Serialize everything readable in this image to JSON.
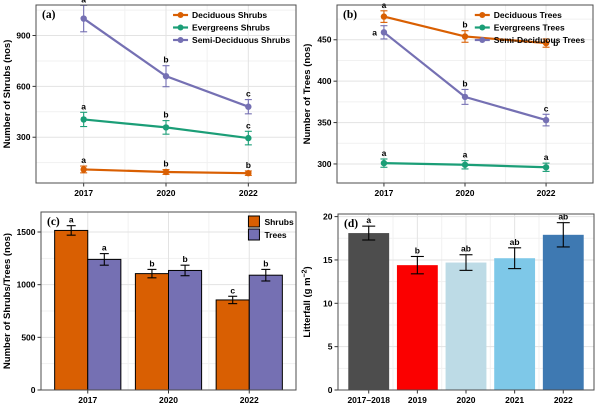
{
  "figure": {
    "background": "#ffffff",
    "palette": {
      "orange": "#D95F02",
      "green": "#1B9E77",
      "purple": "#7570B3",
      "grid_major": "#E3E3E3",
      "grid_minor": "#F1F1F1",
      "panel_border": "#4D4D4D",
      "text": "#000000"
    }
  },
  "chart_data": [
    {
      "id": "a",
      "panel_label": "(a)",
      "type": "line",
      "title": "",
      "xlabel": "",
      "ylabel": "Number of Shrubs (nos)",
      "ylim": [
        30,
        1080
      ],
      "yticks": [
        300,
        600,
        900
      ],
      "grid": true,
      "legend_position": "top-right-inside",
      "categories": [
        "2017",
        "2020",
        "2022"
      ],
      "series": [
        {
          "name": "Deciduous Shrubs",
          "color": "#D95F02",
          "values": [
            110,
            95,
            88
          ],
          "errors": [
            20,
            14,
            13
          ],
          "letters": [
            "a",
            "b",
            "b"
          ]
        },
        {
          "name": "Evergreens Shrubs",
          "color": "#1B9E77",
          "values": [
            405,
            358,
            295
          ],
          "errors": [
            42,
            40,
            40
          ],
          "letters": [
            "a",
            "b",
            "c"
          ]
        },
        {
          "name": "Semi-Deciduous Shrubs",
          "color": "#7570B3",
          "values": [
            1000,
            660,
            480
          ],
          "errors": [
            78,
            62,
            42
          ],
          "letters": [
            "a",
            "b",
            "c"
          ]
        }
      ]
    },
    {
      "id": "b",
      "panel_label": "(b)",
      "type": "line",
      "title": "",
      "xlabel": "",
      "ylabel": "Number of Trees (nos)",
      "ylim": [
        277,
        492
      ],
      "yticks": [
        300,
        350,
        400,
        450
      ],
      "grid": true,
      "legend_position": "top-right-inside",
      "categories": [
        "2017",
        "2020",
        "2022"
      ],
      "series": [
        {
          "name": "Deciduous Trees",
          "color": "#D95F02",
          "values": [
            478,
            454,
            446
          ],
          "errors": [
            7,
            7,
            5
          ],
          "letters": [
            "a",
            "b",
            "b"
          ],
          "letter_sides": [
            "top",
            "top",
            "right"
          ]
        },
        {
          "name": "Evergreens Trees",
          "color": "#1B9E77",
          "values": [
            301,
            299,
            296
          ],
          "errors": [
            5,
            5,
            5
          ],
          "letters": [
            "a",
            "a",
            "a"
          ]
        },
        {
          "name": "Semi-Deciduous Trees",
          "color": "#7570B3",
          "values": [
            459,
            381,
            353
          ],
          "errors": [
            8,
            9,
            7
          ],
          "letters": [
            "a",
            "b",
            "c"
          ],
          "letter_sides": [
            "left",
            "top",
            "top"
          ]
        }
      ]
    },
    {
      "id": "c",
      "panel_label": "(c)",
      "type": "grouped_bar",
      "title": "",
      "xlabel": "",
      "ylabel": "Number of Shrubs/Trees (nos)",
      "ylim": [
        0,
        1690
      ],
      "yticks": [
        0,
        500,
        1000,
        1500
      ],
      "grid": true,
      "legend_position": "top-right-inside",
      "bar_stroke": "#000000",
      "categories": [
        "2017",
        "2020",
        "2022"
      ],
      "series": [
        {
          "name": "Shrubs",
          "color": "#D95F02",
          "values": [
            1515,
            1105,
            855
          ],
          "errors": [
            45,
            40,
            35
          ],
          "letters": [
            "a",
            "b",
            "c"
          ]
        },
        {
          "name": "Trees",
          "color": "#7570B3",
          "values": [
            1240,
            1135,
            1090
          ],
          "errors": [
            55,
            50,
            55
          ],
          "letters": [
            "a",
            "b",
            "b"
          ]
        }
      ]
    },
    {
      "id": "d",
      "panel_label": "(d)",
      "type": "bar",
      "title": "",
      "xlabel": "",
      "ylabel": "Litterfall (g m-2)",
      "ylabel_parts": [
        {
          "t": "Litterfall (g m"
        },
        {
          "t": "−2",
          "sup": true
        },
        {
          "t": ")"
        }
      ],
      "ylim": [
        0,
        20.3
      ],
      "yticks": [
        0,
        5,
        10,
        15,
        20
      ],
      "grid": true,
      "legend_position": "none",
      "categories": [
        "2017–2018",
        "2019",
        "2020",
        "2021",
        "2022"
      ],
      "values": [
        18.1,
        14.4,
        14.7,
        15.2,
        17.9
      ],
      "errors": [
        0.8,
        1.0,
        0.9,
        1.2,
        1.4
      ],
      "letters": [
        "a",
        "b",
        "ab",
        "ab",
        "ab"
      ],
      "colors": [
        "#4D4D4D",
        "#FB0000",
        "#BDDBE6",
        "#7EC8E8",
        "#3E79B2"
      ]
    }
  ]
}
